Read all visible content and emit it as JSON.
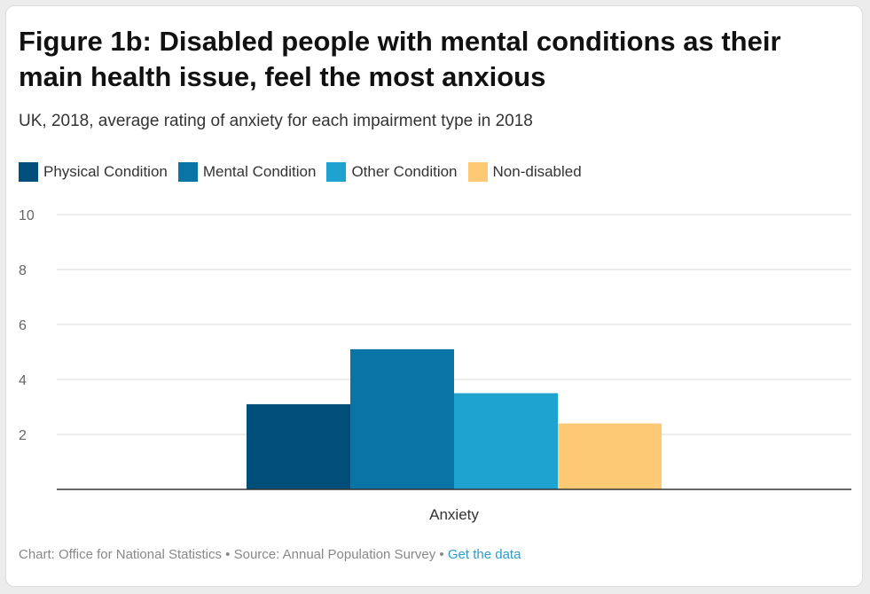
{
  "title": "Figure 1b: Disabled people with mental conditions as their main health issue, feel the most anxious",
  "subtitle": "UK, 2018, average rating of anxiety for each impairment type in 2018",
  "legend": [
    {
      "label": "Physical Condition",
      "color": "#004f7a"
    },
    {
      "label": "Mental Condition",
      "color": "#0a75a5"
    },
    {
      "label": "Other Condition",
      "color": "#1ea3d1"
    },
    {
      "label": "Non-disabled",
      "color": "#fdc974"
    }
  ],
  "footer": {
    "chart": "Chart: Office for National Statistics",
    "separator": "•",
    "source": "Source: Annual Population Survey",
    "link": "Get the data"
  },
  "chart_data": {
    "type": "bar",
    "categories": [
      "Anxiety"
    ],
    "series": [
      {
        "name": "Physical Condition",
        "values": [
          3.1
        ],
        "color": "#004f7a"
      },
      {
        "name": "Mental Condition",
        "values": [
          5.1
        ],
        "color": "#0a75a5"
      },
      {
        "name": "Other Condition",
        "values": [
          3.5
        ],
        "color": "#1ea3d1"
      },
      {
        "name": "Non-disabled",
        "values": [
          2.4
        ],
        "color": "#fdc974"
      }
    ],
    "yticks": [
      "2",
      "4",
      "6",
      "8",
      "10"
    ],
    "ylim": [
      0,
      10
    ],
    "grid": true,
    "legend_position": "top-left"
  }
}
